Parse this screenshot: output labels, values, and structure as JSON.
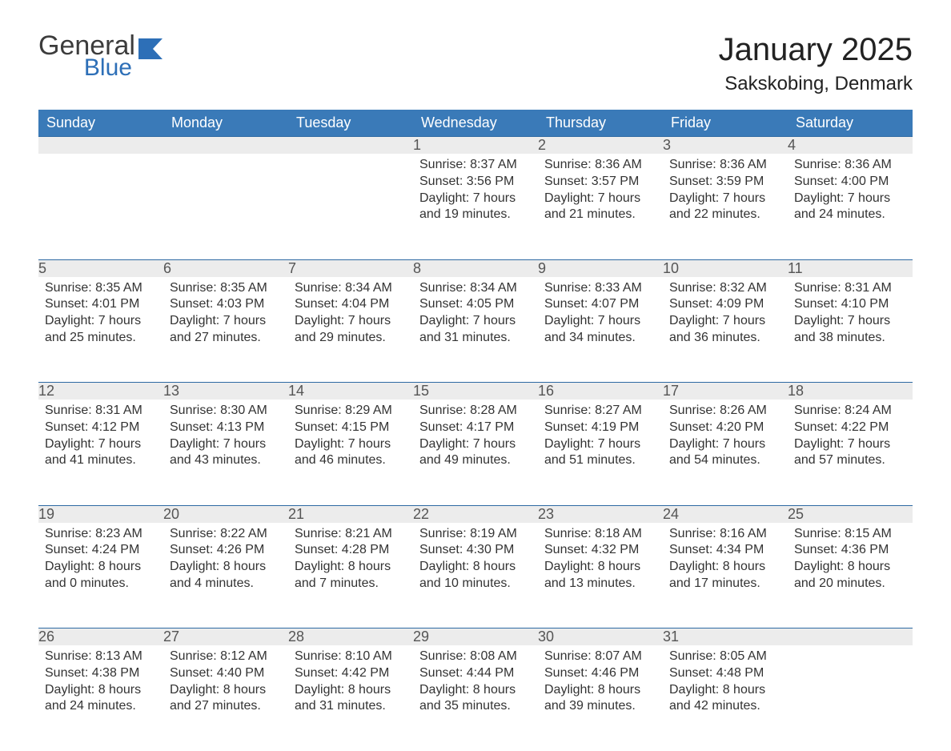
{
  "logo": {
    "word1": "General",
    "word2": "Blue",
    "flag_color": "#2d6fb7"
  },
  "title": "January 2025",
  "location": "Sakskobing, Denmark",
  "colors": {
    "header_bg": "#3a7ab8",
    "header_text": "#ffffff",
    "daynum_bg": "#ececec",
    "daynum_border": "#2e6aa3",
    "body_text": "#333333",
    "page_bg": "#ffffff"
  },
  "day_headers": [
    "Sunday",
    "Monday",
    "Tuesday",
    "Wednesday",
    "Thursday",
    "Friday",
    "Saturday"
  ],
  "weeks": [
    [
      null,
      null,
      null,
      {
        "n": "1",
        "sunrise": "8:37 AM",
        "sunset": "3:56 PM",
        "dl": "7 hours and 19 minutes."
      },
      {
        "n": "2",
        "sunrise": "8:36 AM",
        "sunset": "3:57 PM",
        "dl": "7 hours and 21 minutes."
      },
      {
        "n": "3",
        "sunrise": "8:36 AM",
        "sunset": "3:59 PM",
        "dl": "7 hours and 22 minutes."
      },
      {
        "n": "4",
        "sunrise": "8:36 AM",
        "sunset": "4:00 PM",
        "dl": "7 hours and 24 minutes."
      }
    ],
    [
      {
        "n": "5",
        "sunrise": "8:35 AM",
        "sunset": "4:01 PM",
        "dl": "7 hours and 25 minutes."
      },
      {
        "n": "6",
        "sunrise": "8:35 AM",
        "sunset": "4:03 PM",
        "dl": "7 hours and 27 minutes."
      },
      {
        "n": "7",
        "sunrise": "8:34 AM",
        "sunset": "4:04 PM",
        "dl": "7 hours and 29 minutes."
      },
      {
        "n": "8",
        "sunrise": "8:34 AM",
        "sunset": "4:05 PM",
        "dl": "7 hours and 31 minutes."
      },
      {
        "n": "9",
        "sunrise": "8:33 AM",
        "sunset": "4:07 PM",
        "dl": "7 hours and 34 minutes."
      },
      {
        "n": "10",
        "sunrise": "8:32 AM",
        "sunset": "4:09 PM",
        "dl": "7 hours and 36 minutes."
      },
      {
        "n": "11",
        "sunrise": "8:31 AM",
        "sunset": "4:10 PM",
        "dl": "7 hours and 38 minutes."
      }
    ],
    [
      {
        "n": "12",
        "sunrise": "8:31 AM",
        "sunset": "4:12 PM",
        "dl": "7 hours and 41 minutes."
      },
      {
        "n": "13",
        "sunrise": "8:30 AM",
        "sunset": "4:13 PM",
        "dl": "7 hours and 43 minutes."
      },
      {
        "n": "14",
        "sunrise": "8:29 AM",
        "sunset": "4:15 PM",
        "dl": "7 hours and 46 minutes."
      },
      {
        "n": "15",
        "sunrise": "8:28 AM",
        "sunset": "4:17 PM",
        "dl": "7 hours and 49 minutes."
      },
      {
        "n": "16",
        "sunrise": "8:27 AM",
        "sunset": "4:19 PM",
        "dl": "7 hours and 51 minutes."
      },
      {
        "n": "17",
        "sunrise": "8:26 AM",
        "sunset": "4:20 PM",
        "dl": "7 hours and 54 minutes."
      },
      {
        "n": "18",
        "sunrise": "8:24 AM",
        "sunset": "4:22 PM",
        "dl": "7 hours and 57 minutes."
      }
    ],
    [
      {
        "n": "19",
        "sunrise": "8:23 AM",
        "sunset": "4:24 PM",
        "dl": "8 hours and 0 minutes."
      },
      {
        "n": "20",
        "sunrise": "8:22 AM",
        "sunset": "4:26 PM",
        "dl": "8 hours and 4 minutes."
      },
      {
        "n": "21",
        "sunrise": "8:21 AM",
        "sunset": "4:28 PM",
        "dl": "8 hours and 7 minutes."
      },
      {
        "n": "22",
        "sunrise": "8:19 AM",
        "sunset": "4:30 PM",
        "dl": "8 hours and 10 minutes."
      },
      {
        "n": "23",
        "sunrise": "8:18 AM",
        "sunset": "4:32 PM",
        "dl": "8 hours and 13 minutes."
      },
      {
        "n": "24",
        "sunrise": "8:16 AM",
        "sunset": "4:34 PM",
        "dl": "8 hours and 17 minutes."
      },
      {
        "n": "25",
        "sunrise": "8:15 AM",
        "sunset": "4:36 PM",
        "dl": "8 hours and 20 minutes."
      }
    ],
    [
      {
        "n": "26",
        "sunrise": "8:13 AM",
        "sunset": "4:38 PM",
        "dl": "8 hours and 24 minutes."
      },
      {
        "n": "27",
        "sunrise": "8:12 AM",
        "sunset": "4:40 PM",
        "dl": "8 hours and 27 minutes."
      },
      {
        "n": "28",
        "sunrise": "8:10 AM",
        "sunset": "4:42 PM",
        "dl": "8 hours and 31 minutes."
      },
      {
        "n": "29",
        "sunrise": "8:08 AM",
        "sunset": "4:44 PM",
        "dl": "8 hours and 35 minutes."
      },
      {
        "n": "30",
        "sunrise": "8:07 AM",
        "sunset": "4:46 PM",
        "dl": "8 hours and 39 minutes."
      },
      {
        "n": "31",
        "sunrise": "8:05 AM",
        "sunset": "4:48 PM",
        "dl": "8 hours and 42 minutes."
      },
      null
    ]
  ],
  "labels": {
    "sunrise": "Sunrise: ",
    "sunset": "Sunset: ",
    "daylight": "Daylight: "
  }
}
